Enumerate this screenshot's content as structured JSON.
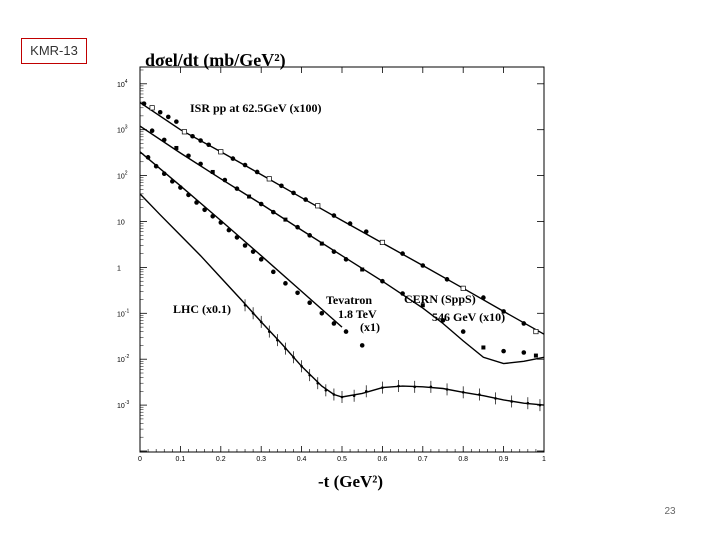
{
  "slide": {
    "tag": "KMR-13",
    "page_number": "23",
    "colors": {
      "tag_border": "#c00000",
      "plot": "#000000"
    }
  },
  "chart_data": {
    "type": "scatter",
    "title": "dσel/dt  (mb/GeV²)",
    "xlabel": "-t  (GeV²)",
    "ylabel": "",
    "xlim": [
      0,
      1
    ],
    "ylim_log10": [
      -4,
      4.3
    ],
    "yscale": "log",
    "x_ticks": [
      "0",
      "0.1",
      "0.2",
      "0.3",
      "0.4",
      "0.5",
      "0.6",
      "0.7",
      "0.8",
      "0.9",
      "1"
    ],
    "y_ticks": [
      {
        "base": "10",
        "exp": "4"
      },
      {
        "base": "10",
        "exp": "3"
      },
      {
        "base": "10",
        "exp": "2"
      },
      {
        "base": "10",
        "exp": ""
      },
      {
        "base": "1",
        "exp": ""
      },
      {
        "base": "10",
        "exp": "-1"
      },
      {
        "base": "10",
        "exp": "-2"
      },
      {
        "base": "10",
        "exp": "-3"
      }
    ],
    "annotations": {
      "isr": "ISR pp at 62.5GeV   (x100)",
      "cern": "CERN (SppS)",
      "cern_energy": "546 GeV  (x10)",
      "tevatron": "Tevatron",
      "tevatron_energy": "1.8 TeV",
      "tevatron_scale": "(x1)",
      "lhc": "LHC (x0.1)"
    },
    "series": [
      {
        "key": "isr",
        "curve": [
          [
            0.0,
            3900
          ],
          [
            0.1,
            1000
          ],
          [
            0.2,
            330
          ],
          [
            0.3,
            105
          ],
          [
            0.4,
            33
          ],
          [
            0.5,
            10.5
          ],
          [
            0.6,
            3.4
          ],
          [
            0.7,
            1.1
          ],
          [
            0.8,
            0.35
          ],
          [
            0.9,
            0.11
          ],
          [
            1.0,
            0.035
          ]
        ],
        "points": [
          [
            0.01,
            3700
          ],
          [
            0.03,
            3000
          ],
          [
            0.05,
            2400
          ],
          [
            0.07,
            1900
          ],
          [
            0.09,
            1500
          ],
          [
            0.11,
            900
          ],
          [
            0.13,
            720
          ],
          [
            0.15,
            580
          ],
          [
            0.17,
            470
          ],
          [
            0.2,
            330
          ],
          [
            0.23,
            235
          ],
          [
            0.26,
            170
          ],
          [
            0.29,
            120
          ],
          [
            0.32,
            85
          ],
          [
            0.35,
            60
          ],
          [
            0.38,
            42
          ],
          [
            0.41,
            30
          ],
          [
            0.44,
            22
          ],
          [
            0.48,
            13.5
          ],
          [
            0.52,
            9
          ],
          [
            0.56,
            6
          ],
          [
            0.6,
            3.5
          ],
          [
            0.65,
            2
          ],
          [
            0.7,
            1.1
          ],
          [
            0.76,
            0.55
          ],
          [
            0.8,
            0.35
          ],
          [
            0.85,
            0.22
          ],
          [
            0.9,
            0.11
          ],
          [
            0.95,
            0.06
          ],
          [
            0.98,
            0.04
          ]
        ]
      },
      {
        "key": "cern",
        "curve": [
          [
            0.0,
            1200
          ],
          [
            0.1,
            310
          ],
          [
            0.2,
            85
          ],
          [
            0.3,
            24
          ],
          [
            0.4,
            6.5
          ],
          [
            0.5,
            1.8
          ],
          [
            0.6,
            0.5
          ],
          [
            0.7,
            0.13
          ],
          [
            0.75,
            0.06
          ],
          [
            0.8,
            0.025
          ],
          [
            0.85,
            0.011
          ],
          [
            0.9,
            0.008
          ],
          [
            0.95,
            0.009
          ],
          [
            1.0,
            0.011
          ]
        ],
        "points": [
          [
            0.03,
            950
          ],
          [
            0.06,
            600
          ],
          [
            0.09,
            400
          ],
          [
            0.12,
            270
          ],
          [
            0.15,
            180
          ],
          [
            0.18,
            120
          ],
          [
            0.21,
            80
          ],
          [
            0.24,
            52
          ],
          [
            0.27,
            35
          ],
          [
            0.3,
            24
          ],
          [
            0.33,
            16
          ],
          [
            0.36,
            11
          ],
          [
            0.39,
            7.5
          ],
          [
            0.42,
            5
          ],
          [
            0.45,
            3.3
          ],
          [
            0.48,
            2.2
          ],
          [
            0.51,
            1.5
          ],
          [
            0.55,
            0.9
          ],
          [
            0.6,
            0.5
          ],
          [
            0.65,
            0.27
          ],
          [
            0.7,
            0.15
          ],
          [
            0.75,
            0.07
          ],
          [
            0.8,
            0.04
          ],
          [
            0.85,
            0.018
          ],
          [
            0.9,
            0.015
          ],
          [
            0.95,
            0.014
          ],
          [
            0.98,
            0.012
          ]
        ]
      },
      {
        "key": "tevatron",
        "curve": [
          [
            0.0,
            330
          ],
          [
            0.1,
            60
          ],
          [
            0.2,
            10.5
          ],
          [
            0.3,
            1.8
          ],
          [
            0.4,
            0.3
          ],
          [
            0.5,
            0.05
          ]
        ],
        "points": [
          [
            0.02,
            250
          ],
          [
            0.04,
            160
          ],
          [
            0.06,
            110
          ],
          [
            0.08,
            75
          ],
          [
            0.1,
            55
          ],
          [
            0.12,
            38
          ],
          [
            0.14,
            26
          ],
          [
            0.16,
            18
          ],
          [
            0.18,
            13
          ],
          [
            0.2,
            9.5
          ],
          [
            0.22,
            6.5
          ],
          [
            0.24,
            4.5
          ],
          [
            0.26,
            3
          ],
          [
            0.28,
            2.2
          ],
          [
            0.3,
            1.5
          ],
          [
            0.33,
            0.8
          ],
          [
            0.36,
            0.45
          ],
          [
            0.39,
            0.28
          ],
          [
            0.42,
            0.17
          ],
          [
            0.45,
            0.1
          ],
          [
            0.48,
            0.06
          ],
          [
            0.51,
            0.04
          ],
          [
            0.55,
            0.02
          ]
        ]
      },
      {
        "key": "lhc",
        "curve": [
          [
            0.0,
            40
          ],
          [
            0.05,
            14
          ],
          [
            0.1,
            5
          ],
          [
            0.15,
            1.8
          ],
          [
            0.2,
            0.6
          ],
          [
            0.25,
            0.2
          ],
          [
            0.3,
            0.065
          ],
          [
            0.35,
            0.022
          ],
          [
            0.4,
            0.007
          ],
          [
            0.45,
            0.0026
          ],
          [
            0.48,
            0.0017
          ],
          [
            0.5,
            0.0015
          ],
          [
            0.55,
            0.0018
          ],
          [
            0.6,
            0.0024
          ],
          [
            0.65,
            0.0026
          ],
          [
            0.7,
            0.0025
          ],
          [
            0.75,
            0.0023
          ],
          [
            0.8,
            0.0019
          ],
          [
            0.85,
            0.0016
          ],
          [
            0.9,
            0.0013
          ],
          [
            0.95,
            0.0011
          ],
          [
            1.0,
            0.001
          ]
        ],
        "points": [
          [
            0.26,
            0.15
          ],
          [
            0.28,
            0.1
          ],
          [
            0.3,
            0.065
          ],
          [
            0.32,
            0.04
          ],
          [
            0.34,
            0.026
          ],
          [
            0.36,
            0.017
          ],
          [
            0.38,
            0.011
          ],
          [
            0.4,
            0.007
          ],
          [
            0.42,
            0.0045
          ],
          [
            0.44,
            0.003
          ],
          [
            0.46,
            0.0021
          ],
          [
            0.48,
            0.0017
          ],
          [
            0.5,
            0.0015
          ],
          [
            0.53,
            0.0016
          ],
          [
            0.56,
            0.002
          ],
          [
            0.6,
            0.0024
          ],
          [
            0.64,
            0.0026
          ],
          [
            0.68,
            0.0025
          ],
          [
            0.72,
            0.0025
          ],
          [
            0.76,
            0.0022
          ],
          [
            0.8,
            0.0019
          ],
          [
            0.84,
            0.0017
          ],
          [
            0.88,
            0.0014
          ],
          [
            0.92,
            0.0012
          ],
          [
            0.96,
            0.0011
          ],
          [
            0.99,
            0.001
          ]
        ]
      }
    ]
  }
}
